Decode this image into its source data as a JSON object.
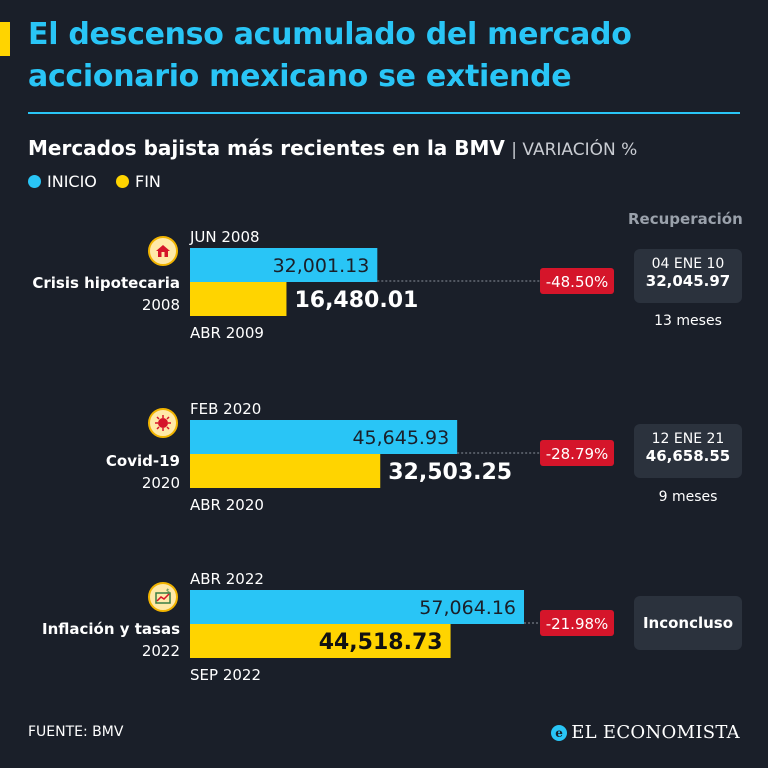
{
  "title_lines": [
    "El descenso acumulado del mercado",
    "accionario mexicano se extiende"
  ],
  "subtitle": "Mercados bajista más recientes en la BMV",
  "subtitle_unit": "VARIACIÓN %",
  "legend": {
    "start": {
      "label": "INICIO",
      "color": "#29c5f6"
    },
    "end": {
      "label": "FIN",
      "color": "#ffd400"
    }
  },
  "recovery_header": "Recuperación",
  "source": "FUENTE: BMV",
  "brand": "EL ECONOMISTA",
  "colors": {
    "start": "#29c5f6",
    "end": "#ffd400",
    "change_badge": "#d5152a",
    "background": "#1a1f29"
  },
  "chart_data": {
    "type": "bar",
    "categories": [
      {
        "name": "Crisis hipotecaria",
        "year": "2008",
        "icon": "house-crisis-icon"
      },
      {
        "name": "Covid-19",
        "year": "2020",
        "icon": "virus-icon"
      },
      {
        "name": "Inflación y tasas",
        "year": "2022",
        "icon": "money-chart-icon"
      }
    ],
    "series": [
      {
        "name": "INICIO",
        "values": [
          32001.13,
          45645.93,
          57064.16
        ],
        "labels": [
          "32,001.13",
          "45,645.93",
          "57,064.16"
        ],
        "dates": [
          "JUN 2008",
          "FEB 2020",
          "ABR 2022"
        ]
      },
      {
        "name": "FIN",
        "values": [
          16480.01,
          32503.25,
          44518.73
        ],
        "labels": [
          "16,480.01",
          "32,503.25",
          "44,518.73"
        ],
        "dates": [
          "ABR 2009",
          "ABR 2020",
          "SEP 2022"
        ]
      }
    ],
    "changes": [
      "-48.50%",
      "-28.79%",
      "-21.98%"
    ],
    "recovery": [
      {
        "date": "04 ENE 10",
        "value": "32,045.97",
        "duration": "13 meses"
      },
      {
        "date": "12 ENE 21",
        "value": "46,658.55",
        "duration": "9 meses"
      },
      {
        "status": "Inconcluso"
      }
    ]
  }
}
